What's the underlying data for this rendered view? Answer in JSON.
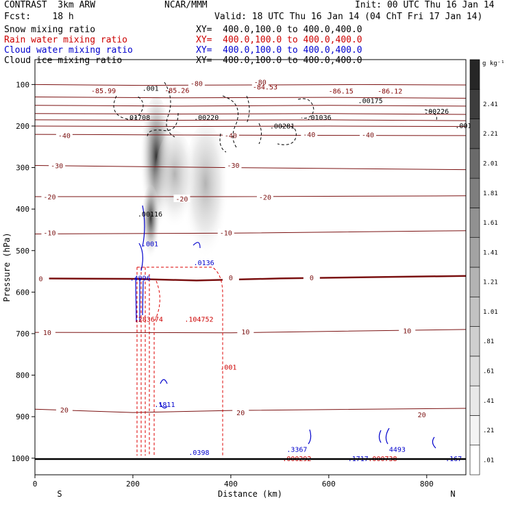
{
  "header": {
    "model": "CONTRAST  3km ARW",
    "center": "NCAR/MMM",
    "init": "Init: 00 UTC Thu 16 Jan 14",
    "fcst": "Fcst:    18 h",
    "valid": "Valid: 18 UTC Thu 16 Jan 14 (04 ChT Fri 17 Jan 14)"
  },
  "fields": [
    {
      "label": "Snow mixing ratio",
      "xy": "XY=  400.0,100.0 to 400.0,400.0",
      "color": "#000000"
    },
    {
      "label": "Rain water mixing ratio",
      "xy": "XY=  400.0,100.0 to 400.0,400.0",
      "color": "#cc0000"
    },
    {
      "label": "Cloud water mixing ratio",
      "xy": "XY=  400.0,100.0 to 400.0,400.0",
      "color": "#0000cc"
    },
    {
      "label": "Cloud ice mixing ratio",
      "xy": "XY=  400.0,100.0 to 400.0,400.0",
      "color": "#000000"
    }
  ],
  "chart_data": {
    "type": "contour",
    "xlabel": "Distance (km)",
    "ylabel": "Pressure (hPa)",
    "xlim": [
      0,
      880
    ],
    "ylim": [
      1040,
      40
    ],
    "x_ticks": [
      0,
      200,
      400,
      600,
      800
    ],
    "y_ticks": [
      100,
      200,
      300,
      400,
      500,
      600,
      700,
      800,
      900,
      1000
    ],
    "x_end_labels": [
      "S",
      "N"
    ],
    "colorbar": {
      "unit": "g kg⁻¹",
      "levels": [
        ".01",
        ".21",
        ".41",
        ".61",
        ".81",
        "1.01",
        "1.21",
        "1.41",
        "1.61",
        "1.81",
        "2.01",
        "2.21",
        "2.41"
      ],
      "colors": [
        "#ffffff",
        "#f4f4f4",
        "#e8e8e8",
        "#dcdcdc",
        "#cfcfcf",
        "#c2c2c2",
        "#b3b3b3",
        "#a3a3a3",
        "#919191",
        "#7e7e7e",
        "#6a6a6a",
        "#555555",
        "#3d3d3d",
        "#262626"
      ]
    },
    "temperature_contours": [
      {
        "label": "-80",
        "points": [
          [
            0,
            100
          ],
          [
            220,
            102
          ],
          [
            440,
            101
          ],
          [
            660,
            100
          ],
          [
            880,
            101
          ]
        ],
        "labels_at": [
          [
            330,
            97
          ],
          [
            460,
            94
          ]
        ],
        "bold": false
      },
      {
        "label": "",
        "points": [
          [
            0,
            130
          ],
          [
            300,
            132
          ],
          [
            600,
            131
          ],
          [
            880,
            133
          ]
        ],
        "labels_at": [],
        "bold": false
      },
      {
        "label": "",
        "points": [
          [
            0,
            150
          ],
          [
            300,
            152
          ],
          [
            600,
            150
          ],
          [
            880,
            152
          ]
        ],
        "labels_at": [],
        "bold": false
      },
      {
        "label": "",
        "points": [
          [
            0,
            170
          ],
          [
            300,
            171
          ],
          [
            600,
            170
          ],
          [
            880,
            172
          ]
        ],
        "labels_at": [],
        "bold": false
      },
      {
        "label": "",
        "points": [
          [
            0,
            185
          ],
          [
            300,
            186
          ],
          [
            600,
            185
          ],
          [
            880,
            187
          ]
        ],
        "labels_at": [],
        "bold": false
      },
      {
        "label": "",
        "points": [
          [
            0,
            200
          ],
          [
            300,
            201
          ],
          [
            600,
            200
          ],
          [
            880,
            201
          ]
        ],
        "labels_at": [],
        "bold": false
      },
      {
        "label": "-40",
        "points": [
          [
            0,
            220
          ],
          [
            400,
            222
          ],
          [
            880,
            223
          ]
        ],
        "labels_at": [
          [
            60,
            222
          ],
          [
            400,
            222
          ],
          [
            560,
            220
          ],
          [
            680,
            221
          ]
        ],
        "bold": false
      },
      {
        "label": "-30",
        "points": [
          [
            0,
            295
          ],
          [
            400,
            300
          ],
          [
            880,
            305
          ]
        ],
        "labels_at": [
          [
            45,
            295
          ],
          [
            405,
            294
          ]
        ],
        "bold": false
      },
      {
        "label": "-20",
        "points": [
          [
            0,
            370
          ],
          [
            400,
            370
          ],
          [
            880,
            368
          ]
        ],
        "labels_at": [
          [
            30,
            370
          ],
          [
            300,
            375
          ],
          [
            470,
            371
          ]
        ],
        "bold": false
      },
      {
        "label": "-10",
        "points": [
          [
            0,
            460
          ],
          [
            400,
            458
          ],
          [
            880,
            452
          ]
        ],
        "labels_at": [
          [
            30,
            457
          ],
          [
            390,
            457
          ]
        ],
        "bold": false
      },
      {
        "label": "0",
        "points": [
          [
            0,
            567
          ],
          [
            200,
            568
          ],
          [
            330,
            572
          ],
          [
            500,
            567
          ],
          [
            880,
            561
          ]
        ],
        "labels_at": [
          [
            12,
            567
          ],
          [
            400,
            565
          ],
          [
            565,
            565
          ]
        ],
        "bold": true
      },
      {
        "label": "10",
        "points": [
          [
            0,
            697
          ],
          [
            400,
            698
          ],
          [
            880,
            690
          ]
        ],
        "labels_at": [
          [
            25,
            697
          ],
          [
            430,
            695
          ],
          [
            760,
            693
          ]
        ],
        "bold": false
      },
      {
        "label": "20",
        "points": [
          [
            0,
            882
          ],
          [
            200,
            890
          ],
          [
            400,
            885
          ],
          [
            880,
            880
          ]
        ],
        "labels_at": [
          [
            60,
            883
          ],
          [
            420,
            890
          ],
          [
            790,
            895
          ]
        ],
        "bold": false
      }
    ],
    "annotations": [
      {
        "text": "-85.99",
        "x": 140,
        "y": 121,
        "color": "#800000"
      },
      {
        "text": ".001",
        "x": 236,
        "y": 115,
        "color": "#000000"
      },
      {
        "text": "-85.26",
        "x": 290,
        "y": 120,
        "color": "#800000"
      },
      {
        "text": "-84.53",
        "x": 470,
        "y": 112,
        "color": "#800000"
      },
      {
        "text": "-86.15",
        "x": 625,
        "y": 122,
        "color": "#800000"
      },
      {
        "text": "-86.12",
        "x": 725,
        "y": 122,
        "color": "#800000"
      },
      {
        "text": ".00175",
        "x": 685,
        "y": 145,
        "color": "#000000"
      },
      {
        "text": ".00226",
        "x": 820,
        "y": 170,
        "color": "#000000"
      },
      {
        "text": ".001",
        "x": 875,
        "y": 205,
        "color": "#000000"
      },
      {
        "text": ".01708",
        "x": 210,
        "y": 185,
        "color": "#000000"
      },
      {
        "text": ".00220",
        "x": 350,
        "y": 185,
        "color": "#000000"
      },
      {
        "text": ".01036",
        "x": 580,
        "y": 185,
        "color": "#000000"
      },
      {
        "text": ".00281",
        "x": 505,
        "y": 206,
        "color": "#000000"
      },
      {
        "text": ".00116",
        "x": 235,
        "y": 418,
        "color": "#000000"
      },
      {
        "text": ".001",
        "x": 235,
        "y": 490,
        "color": "#0000cc"
      },
      {
        "text": ".0136",
        "x": 345,
        "y": 535,
        "color": "#0000cc"
      },
      {
        "text": ".4996",
        "x": 215,
        "y": 572,
        "color": "#0000cc"
      },
      {
        "text": ".283674",
        "x": 232,
        "y": 671,
        "color": "#cc0000"
      },
      {
        "text": ".104752",
        "x": 335,
        "y": 671,
        "color": "#cc0000"
      },
      {
        "text": ".001",
        "x": 395,
        "y": 787,
        "color": "#cc0000"
      },
      {
        "text": ".1811",
        "x": 265,
        "y": 877,
        "color": "#0000cc"
      },
      {
        "text": ".0398",
        "x": 335,
        "y": 992,
        "color": "#0000cc"
      },
      {
        "text": ".3367",
        "x": 535,
        "y": 985,
        "color": "#0000cc"
      },
      {
        "text": ".000292",
        "x": 535,
        "y": 1007,
        "color": "#cc0000"
      },
      {
        "text": ".1717",
        "x": 660,
        "y": 1007,
        "color": "#0000cc"
      },
      {
        "text": ".000738",
        "x": 710,
        "y": 1007,
        "color": "#cc0000"
      },
      {
        "text": "4493",
        "x": 740,
        "y": 985,
        "color": "#0000cc"
      },
      {
        "text": ".167",
        "x": 855,
        "y": 1007,
        "color": "#0000cc"
      }
    ]
  }
}
